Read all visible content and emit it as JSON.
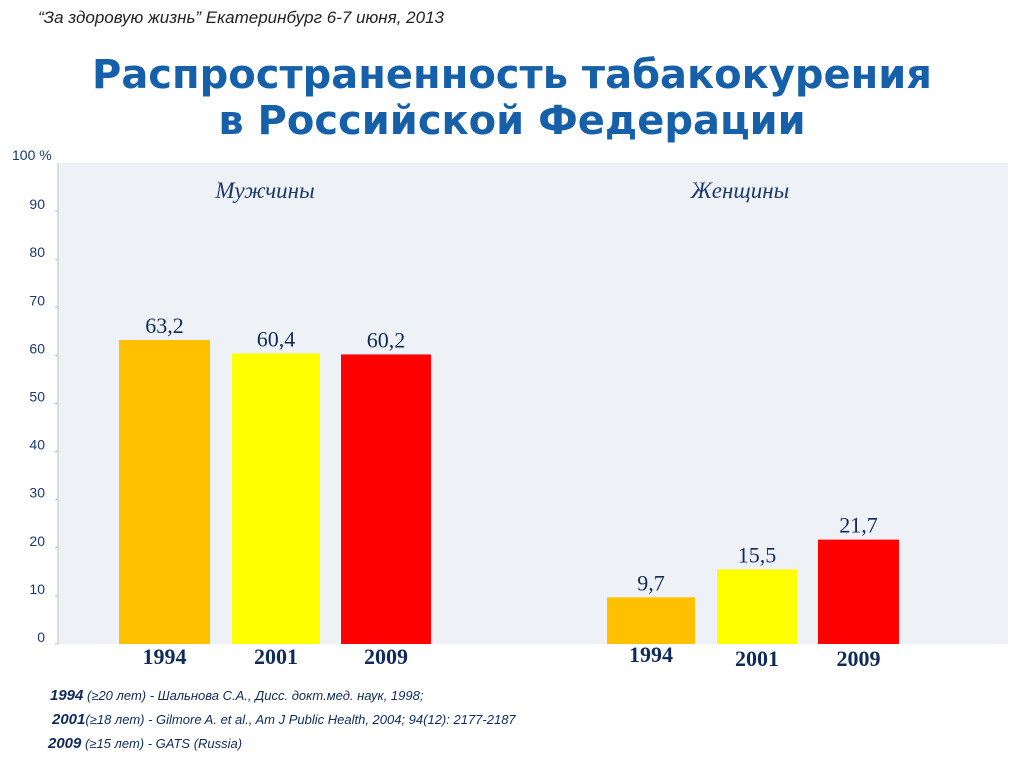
{
  "header": {
    "event": "“За здоровую жизнь”  Екатеринбург 6-7 июня, 2013"
  },
  "title": {
    "line1": "Распространенность табакокурения",
    "line2": "в Российской Федерации"
  },
  "colors": {
    "title": "#1560a8",
    "plot_background": "#eef1f6",
    "1994": "#ffc000",
    "2001": "#ffff00",
    "2009": "#ff0000"
  },
  "chart_data": {
    "type": "bar",
    "y_unit_label": "100 %",
    "ylim": [
      0,
      100
    ],
    "yticks": [
      0,
      10,
      20,
      30,
      40,
      50,
      60,
      70,
      80,
      90
    ],
    "grid": false,
    "legend": "none",
    "groups": [
      {
        "name": "Мужчины",
        "categories": [
          "1994",
          "2001",
          "2009"
        ],
        "values": [
          63.2,
          60.4,
          60.2
        ],
        "labels": [
          "63,2",
          "60,4",
          "60,2"
        ]
      },
      {
        "name": "Женщины",
        "categories": [
          "1994",
          "2001",
          "2009"
        ],
        "values": [
          9.7,
          15.5,
          21.7
        ],
        "labels": [
          "9,7",
          "15,5",
          "21,7"
        ]
      }
    ]
  },
  "footnotes": [
    {
      "year": "1994",
      "text": " (≥20 лет) - Шальнова С.А., Дисс. докт.мед. наук, 1998;"
    },
    {
      "year": "2001",
      "text": "(≥18 лет) - Gilmore A. et al., Am J Public Health, 2004; 94(12): 2177-2187"
    },
    {
      "year": "2009",
      "text": " (≥15 лет) - GATS (Russia)"
    }
  ]
}
